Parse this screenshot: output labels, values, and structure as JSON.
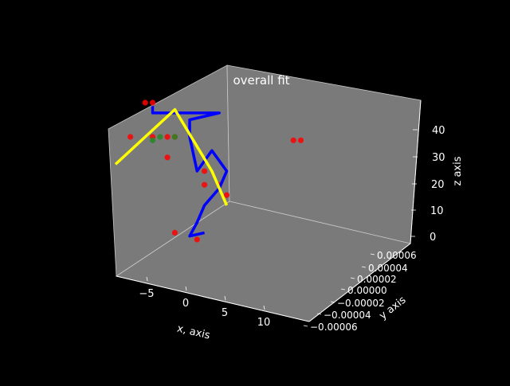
{
  "chart_data": {
    "type": "scatter",
    "projection": "3d",
    "title": "overall fit",
    "xlabel": "x, axis",
    "ylabel": "y axis",
    "zlabel": "z axis",
    "x_ticks": [
      "−5",
      "0",
      "5",
      "10"
    ],
    "y_ticks": [
      "−0.00006",
      "−0.00004",
      "−0.00002",
      "0.00000",
      "0.00002",
      "0.00004",
      "0.00006"
    ],
    "z_ticks": [
      "0",
      "10",
      "20",
      "30",
      "40"
    ],
    "grid": false,
    "legend": "none",
    "series": [
      {
        "kind": "points",
        "color": "#ff0000",
        "points": [
          [
            -6,
            0,
            40
          ],
          [
            -5,
            0,
            40
          ],
          [
            -8,
            0,
            30
          ],
          [
            -5,
            0,
            30
          ],
          [
            -3,
            0,
            30
          ],
          [
            -2,
            0,
            30
          ],
          [
            -3,
            0,
            24
          ],
          [
            2,
            0,
            20
          ],
          [
            2,
            0,
            16
          ],
          [
            -2,
            0,
            2
          ],
          [
            1,
            0,
            0
          ],
          [
            14,
            0,
            29
          ],
          [
            15,
            0,
            29
          ],
          [
            4,
            0,
            16
          ],
          [
            5,
            0,
            13
          ]
        ]
      },
      {
        "kind": "points",
        "color": "#228b22",
        "points": [
          [
            -4,
            0,
            30
          ],
          [
            -5,
            0,
            29
          ],
          [
            -2,
            0,
            30
          ]
        ]
      },
      {
        "kind": "line",
        "color": "#0000ff",
        "points": [
          [
            -5,
            0,
            39
          ],
          [
            -5,
            0,
            37
          ],
          [
            4,
            0,
            37
          ],
          [
            0,
            0,
            35
          ],
          [
            0,
            0,
            32
          ],
          [
            0,
            0,
            30
          ],
          [
            1,
            0,
            20
          ],
          [
            3,
            0,
            26
          ],
          [
            5,
            0,
            20
          ],
          [
            4,
            0,
            15
          ],
          [
            2,
            0,
            10
          ],
          [
            1,
            0,
            5
          ],
          [
            0,
            0,
            1
          ],
          [
            2,
            0,
            2
          ]
        ]
      },
      {
        "kind": "line",
        "color": "#ffff00",
        "points": [
          [
            -10,
            0,
            22
          ],
          [
            -2,
            0,
            38
          ],
          [
            3,
            0,
            20
          ],
          [
            5,
            0,
            10
          ]
        ]
      }
    ],
    "colors": {
      "background": "#000000",
      "pane": "#7a7a7a",
      "axis_text": "#ffffff"
    }
  }
}
